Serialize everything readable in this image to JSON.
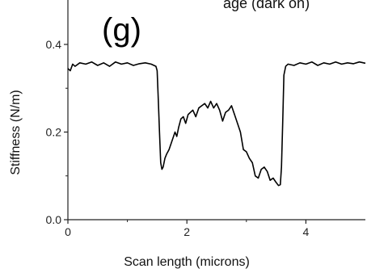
{
  "panel_label": "(g)",
  "cut_title": "age (dark on)",
  "chart_data": {
    "type": "line",
    "title": "",
    "xlabel": "Scan length (microns)",
    "ylabel": "Stiffness (N/m)",
    "xlim": [
      0,
      5
    ],
    "ylim": [
      0,
      0.4
    ],
    "x_ticks": [
      0,
      2,
      4
    ],
    "x_tick_labels": [
      "0",
      "2",
      "4"
    ],
    "y_ticks": [
      0.0,
      0.2,
      0.4
    ],
    "y_tick_labels": [
      "0.0",
      "0.2",
      "0.4"
    ],
    "grid": false,
    "legend": "none",
    "series": [
      {
        "color": "#000000",
        "x": [
          0.0,
          0.04,
          0.08,
          0.12,
          0.2,
          0.3,
          0.4,
          0.5,
          0.6,
          0.7,
          0.8,
          0.9,
          1.0,
          1.1,
          1.2,
          1.3,
          1.4,
          1.48,
          1.5,
          1.52,
          1.54,
          1.56,
          1.58,
          1.6,
          1.63,
          1.66,
          1.7,
          1.75,
          1.8,
          1.83,
          1.86,
          1.9,
          1.94,
          1.98,
          2.02,
          2.06,
          2.1,
          2.15,
          2.2,
          2.25,
          2.3,
          2.35,
          2.4,
          2.45,
          2.5,
          2.55,
          2.6,
          2.65,
          2.7,
          2.75,
          2.8,
          2.85,
          2.9,
          2.95,
          3.0,
          3.05,
          3.1,
          3.15,
          3.2,
          3.25,
          3.3,
          3.35,
          3.4,
          3.45,
          3.5,
          3.54,
          3.57,
          3.59,
          3.61,
          3.63,
          3.66,
          3.7,
          3.8,
          3.9,
          4.0,
          4.1,
          4.2,
          4.3,
          4.4,
          4.5,
          4.6,
          4.7,
          4.8,
          4.9,
          5.0
        ],
        "values": [
          0.345,
          0.34,
          0.355,
          0.35,
          0.358,
          0.355,
          0.36,
          0.352,
          0.358,
          0.35,
          0.36,
          0.355,
          0.358,
          0.352,
          0.356,
          0.358,
          0.355,
          0.35,
          0.34,
          0.27,
          0.2,
          0.13,
          0.115,
          0.12,
          0.14,
          0.15,
          0.16,
          0.18,
          0.2,
          0.19,
          0.21,
          0.23,
          0.235,
          0.22,
          0.24,
          0.245,
          0.25,
          0.235,
          0.255,
          0.26,
          0.265,
          0.255,
          0.27,
          0.255,
          0.265,
          0.25,
          0.225,
          0.245,
          0.25,
          0.26,
          0.24,
          0.22,
          0.2,
          0.16,
          0.155,
          0.14,
          0.13,
          0.1,
          0.095,
          0.115,
          0.12,
          0.11,
          0.09,
          0.095,
          0.085,
          0.078,
          0.08,
          0.12,
          0.22,
          0.33,
          0.35,
          0.355,
          0.352,
          0.358,
          0.355,
          0.36,
          0.352,
          0.358,
          0.355,
          0.36,
          0.355,
          0.358,
          0.356,
          0.36,
          0.357
        ]
      }
    ]
  }
}
